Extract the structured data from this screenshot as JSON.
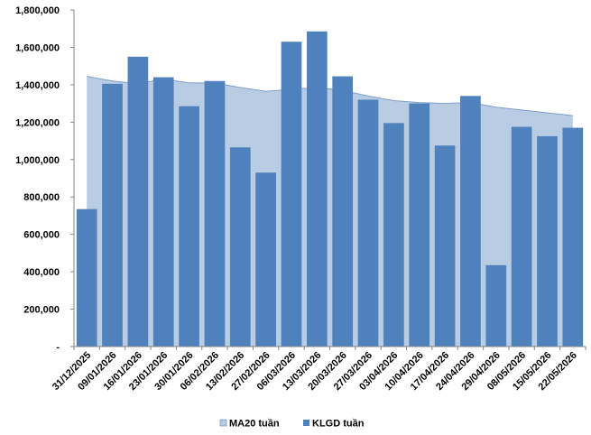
{
  "chart_data": {
    "type": "bar",
    "categories": [
      "31/12/2025",
      "09/01/2026",
      "16/01/2026",
      "23/01/2026",
      "30/01/2026",
      "06/02/2026",
      "13/02/2026",
      "27/02/2026",
      "06/03/2026",
      "13/03/2026",
      "20/03/2026",
      "27/03/2026",
      "03/04/2026",
      "10/04/2026",
      "17/04/2026",
      "24/04/2026",
      "29/04/2026",
      "08/05/2026",
      "15/05/2026",
      "22/05/2026"
    ],
    "series": [
      {
        "name": "MA20 tuần",
        "type": "area",
        "color": "#b8cce4",
        "values": [
          1445000,
          1420000,
          1405000,
          1430000,
          1410000,
          1410000,
          1385000,
          1365000,
          1375000,
          1385000,
          1370000,
          1340000,
          1315000,
          1305000,
          1300000,
          1305000,
          1280000,
          1265000,
          1250000,
          1235000
        ]
      },
      {
        "name": "KLGD tuần",
        "type": "bar",
        "color": "#4f81bd",
        "values": [
          735000,
          1405000,
          1550000,
          1440000,
          1285000,
          1420000,
          1065000,
          930000,
          1630000,
          1685000,
          1445000,
          1320000,
          1195000,
          1300000,
          1075000,
          1340000,
          435000,
          1175000,
          1125000,
          1170000
        ]
      }
    ],
    "y_ticks": [
      "-",
      "200,000",
      "400,000",
      "600,000",
      "800,000",
      "1,000,000",
      "1,200,000",
      "1,400,000",
      "1,600,000",
      "1,800,000"
    ],
    "ylim": [
      0,
      1800000
    ],
    "grid": false,
    "legend_position": "bottom"
  }
}
